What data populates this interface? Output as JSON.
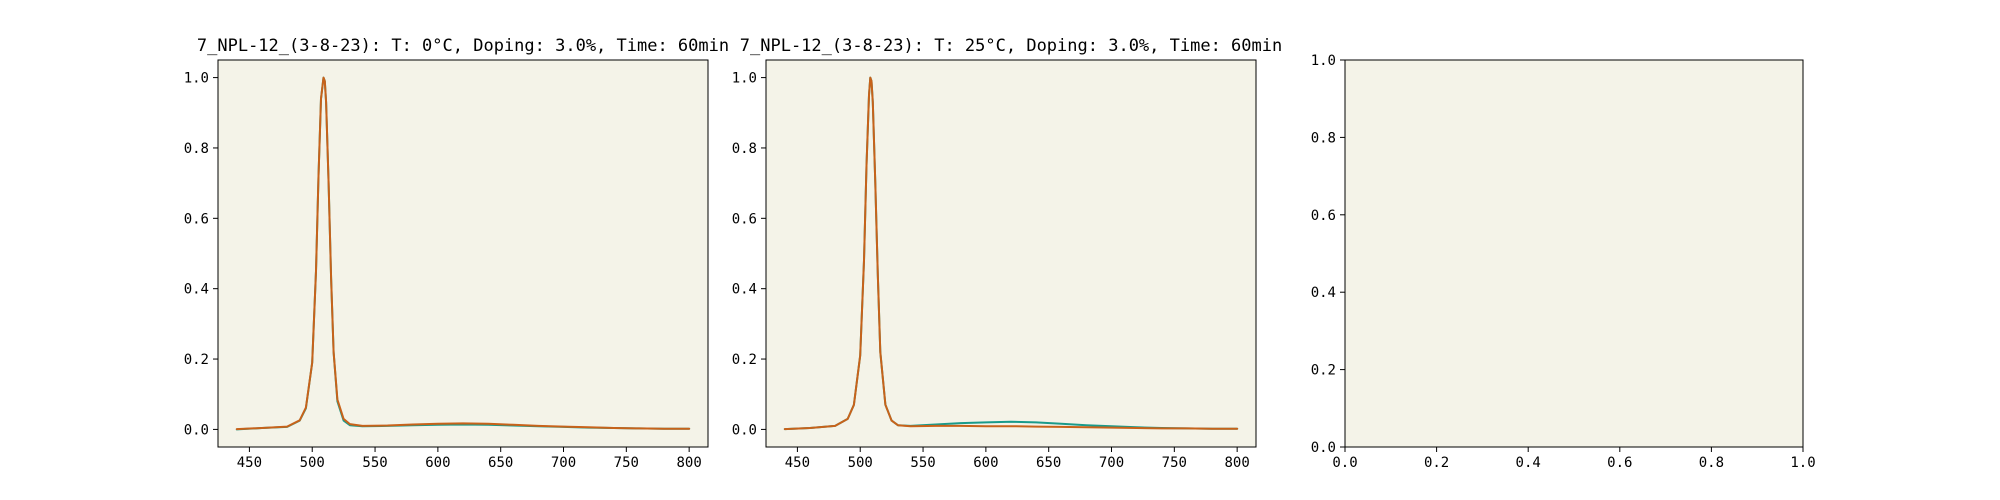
{
  "chart_data": [
    {
      "type": "line",
      "title": "7_NPL-12_(3-8-23): T: 0°C, Doping: 3.0%, Time: 60min",
      "xlabel": "",
      "ylabel": "",
      "xlim": [
        425,
        815
      ],
      "ylim": [
        -0.05,
        1.05
      ],
      "xticks": [
        450,
        500,
        550,
        600,
        650,
        700,
        750,
        800
      ],
      "yticks": [
        0.0,
        0.2,
        0.4,
        0.6,
        0.8,
        1.0
      ],
      "xtick_labels": [
        "450",
        "500",
        "550",
        "600",
        "650",
        "700",
        "750",
        "800"
      ],
      "ytick_labels": [
        "0.0",
        "0.2",
        "0.4",
        "0.6",
        "0.8",
        "1.0"
      ],
      "grid": false,
      "series": [
        {
          "color": "#1a9a8a",
          "x": [
            440,
            460,
            480,
            490,
            495,
            500,
            503,
            505,
            507,
            509,
            510,
            511,
            513,
            515,
            517,
            520,
            525,
            530,
            540,
            560,
            580,
            600,
            620,
            640,
            660,
            680,
            700,
            720,
            740,
            760,
            780,
            800
          ],
          "y": [
            0.0,
            0.004,
            0.007,
            0.025,
            0.06,
            0.19,
            0.45,
            0.72,
            0.94,
            1.0,
            0.99,
            0.93,
            0.7,
            0.43,
            0.22,
            0.08,
            0.025,
            0.012,
            0.009,
            0.01,
            0.012,
            0.013,
            0.014,
            0.013,
            0.011,
            0.009,
            0.007,
            0.005,
            0.004,
            0.003,
            0.002,
            0.002
          ]
        },
        {
          "color": "#c8621a",
          "x": [
            440,
            460,
            480,
            490,
            495,
            500,
            503,
            505,
            507,
            509,
            510,
            511,
            513,
            515,
            517,
            520,
            525,
            530,
            540,
            560,
            580,
            600,
            620,
            640,
            660,
            680,
            700,
            720,
            740,
            760,
            780,
            800
          ],
          "y": [
            0.001,
            0.004,
            0.008,
            0.026,
            0.062,
            0.19,
            0.45,
            0.72,
            0.94,
            1.0,
            0.99,
            0.93,
            0.7,
            0.43,
            0.22,
            0.085,
            0.03,
            0.015,
            0.01,
            0.011,
            0.014,
            0.016,
            0.017,
            0.016,
            0.013,
            0.01,
            0.008,
            0.006,
            0.004,
            0.003,
            0.002,
            0.002
          ]
        }
      ]
    },
    {
      "type": "line",
      "title": "7_NPL-12_(3-8-23): T: 25°C, Doping: 3.0%, Time: 60min",
      "xlabel": "",
      "ylabel": "",
      "xlim": [
        425,
        815
      ],
      "ylim": [
        -0.05,
        1.05
      ],
      "xticks": [
        450,
        500,
        550,
        600,
        650,
        700,
        750,
        800
      ],
      "yticks": [
        0.0,
        0.2,
        0.4,
        0.6,
        0.8,
        1.0
      ],
      "xtick_labels": [
        "450",
        "500",
        "550",
        "600",
        "650",
        "700",
        "750",
        "800"
      ],
      "ytick_labels": [
        "0.0",
        "0.2",
        "0.4",
        "0.6",
        "0.8",
        "1.0"
      ],
      "grid": false,
      "series": [
        {
          "color": "#1a9a8a",
          "x": [
            440,
            460,
            480,
            490,
            495,
            500,
            503,
            505,
            507,
            508,
            509,
            510,
            512,
            514,
            516,
            520,
            525,
            530,
            540,
            560,
            580,
            600,
            620,
            640,
            660,
            680,
            700,
            720,
            740,
            760,
            780,
            800
          ],
          "y": [
            0.001,
            0.004,
            0.01,
            0.03,
            0.07,
            0.21,
            0.48,
            0.75,
            0.95,
            1.0,
            0.99,
            0.93,
            0.7,
            0.44,
            0.22,
            0.07,
            0.025,
            0.012,
            0.01,
            0.014,
            0.018,
            0.02,
            0.022,
            0.02,
            0.016,
            0.012,
            0.009,
            0.006,
            0.004,
            0.003,
            0.002,
            0.002
          ]
        },
        {
          "color": "#c8621a",
          "x": [
            440,
            460,
            480,
            490,
            495,
            500,
            503,
            505,
            507,
            508,
            509,
            510,
            512,
            514,
            516,
            520,
            525,
            530,
            540,
            560,
            580,
            600,
            620,
            640,
            660,
            680,
            700,
            720,
            740,
            760,
            780,
            800
          ],
          "y": [
            0.001,
            0.004,
            0.01,
            0.03,
            0.07,
            0.21,
            0.48,
            0.75,
            0.95,
            1.0,
            0.99,
            0.93,
            0.7,
            0.44,
            0.22,
            0.07,
            0.025,
            0.012,
            0.009,
            0.01,
            0.01,
            0.009,
            0.009,
            0.008,
            0.007,
            0.006,
            0.005,
            0.004,
            0.003,
            0.003,
            0.002,
            0.002
          ]
        }
      ]
    },
    {
      "type": "line",
      "title": "",
      "xlabel": "",
      "ylabel": "",
      "xlim": [
        0.0,
        1.0
      ],
      "ylim": [
        0.0,
        1.0
      ],
      "xticks": [
        0.0,
        0.2,
        0.4,
        0.6,
        0.8,
        1.0
      ],
      "yticks": [
        0.0,
        0.2,
        0.4,
        0.6,
        0.8,
        1.0
      ],
      "xtick_labels": [
        "0.0",
        "0.2",
        "0.4",
        "0.6",
        "0.8",
        "1.0"
      ],
      "ytick_labels": [
        "0.0",
        "0.2",
        "0.4",
        "0.6",
        "0.8",
        "1.0"
      ],
      "grid": false,
      "series": []
    }
  ]
}
